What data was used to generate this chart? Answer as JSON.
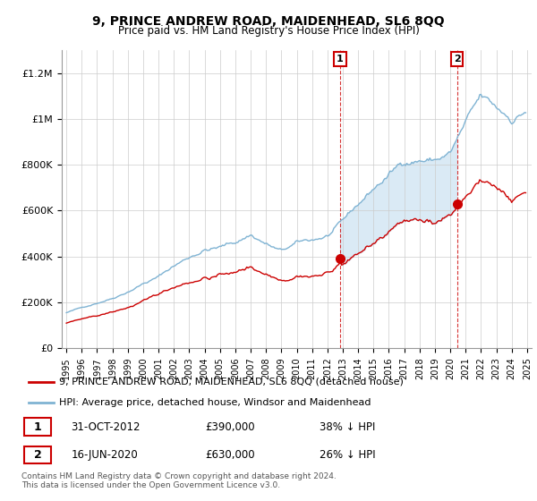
{
  "title": "9, PRINCE ANDREW ROAD, MAIDENHEAD, SL6 8QQ",
  "subtitle": "Price paid vs. HM Land Registry's House Price Index (HPI)",
  "ylabel_ticks": [
    "£0",
    "£200K",
    "£400K",
    "£600K",
    "£800K",
    "£1M",
    "£1.2M"
  ],
  "ytick_vals": [
    0,
    200000,
    400000,
    600000,
    800000,
    1000000,
    1200000
  ],
  "ylim": [
    0,
    1300000
  ],
  "sale1_date": "31-OCT-2012",
  "sale1_price": 390000,
  "sale1_pct": "38%",
  "sale2_date": "16-JUN-2020",
  "sale2_price": 630000,
  "sale2_pct": "26%",
  "legend_house": "9, PRINCE ANDREW ROAD, MAIDENHEAD, SL6 8QQ (detached house)",
  "legend_hpi": "HPI: Average price, detached house, Windsor and Maidenhead",
  "footer": "Contains HM Land Registry data © Crown copyright and database right 2024.\nThis data is licensed under the Open Government Licence v3.0.",
  "house_color": "#cc0000",
  "hpi_color": "#7fb3d3",
  "shade_color": "#daeaf5",
  "marker1_x": 2012.83,
  "marker2_x": 2020.45,
  "xmin": 1994.7,
  "xmax": 2025.3
}
